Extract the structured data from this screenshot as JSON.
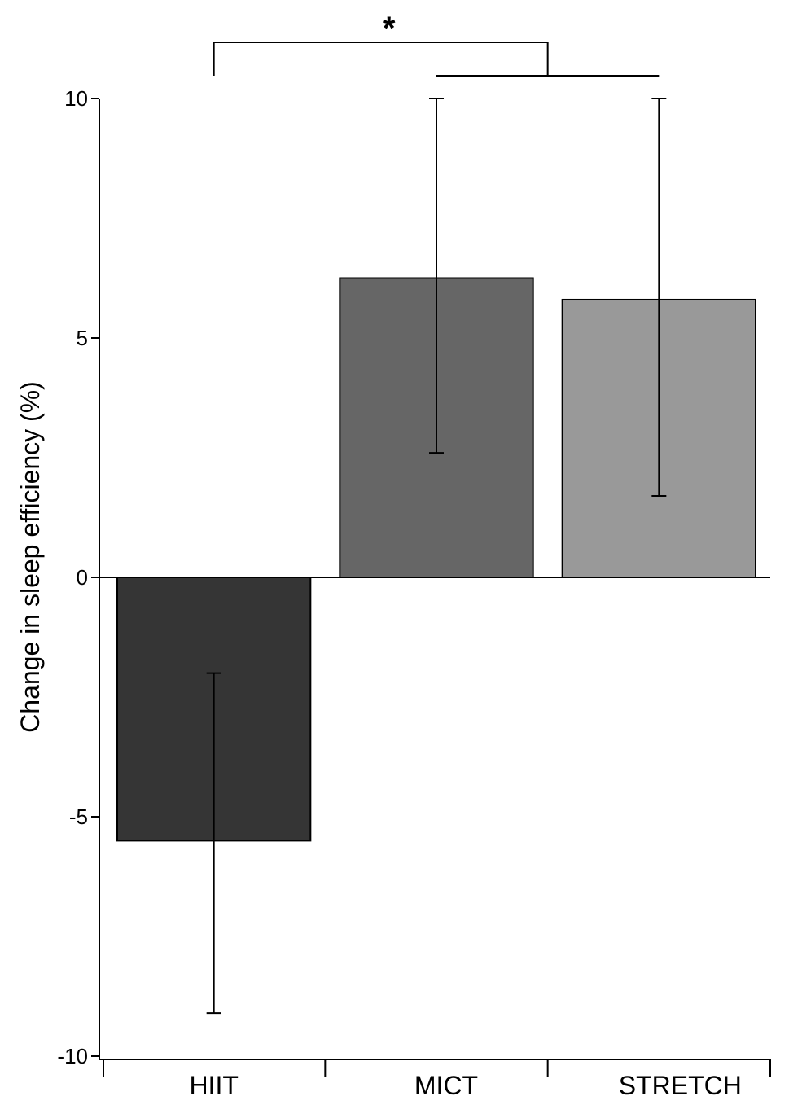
{
  "chart_data": {
    "type": "bar",
    "title": "",
    "xlabel": "",
    "ylabel": "Change in sleep efficiency (%)",
    "ylim": [
      -10,
      10
    ],
    "yticks": [
      10,
      5,
      0,
      -5,
      -10
    ],
    "ytick_labels": [
      "10",
      "5",
      "0",
      "-5",
      "-10"
    ],
    "categories": [
      "HIIT",
      "MICT",
      "STRETCH"
    ],
    "values": [
      -5.5,
      6.25,
      5.8
    ],
    "error_low": [
      -9.1,
      2.6,
      1.7
    ],
    "error_high": [
      -2.0,
      10.0,
      10.0
    ],
    "colors": [
      "#353535",
      "#666666",
      "#999999"
    ],
    "significance": {
      "marker": "*",
      "from": "HIIT",
      "to": [
        "MICT",
        "STRETCH"
      ]
    },
    "grid": false,
    "legend": "none"
  }
}
